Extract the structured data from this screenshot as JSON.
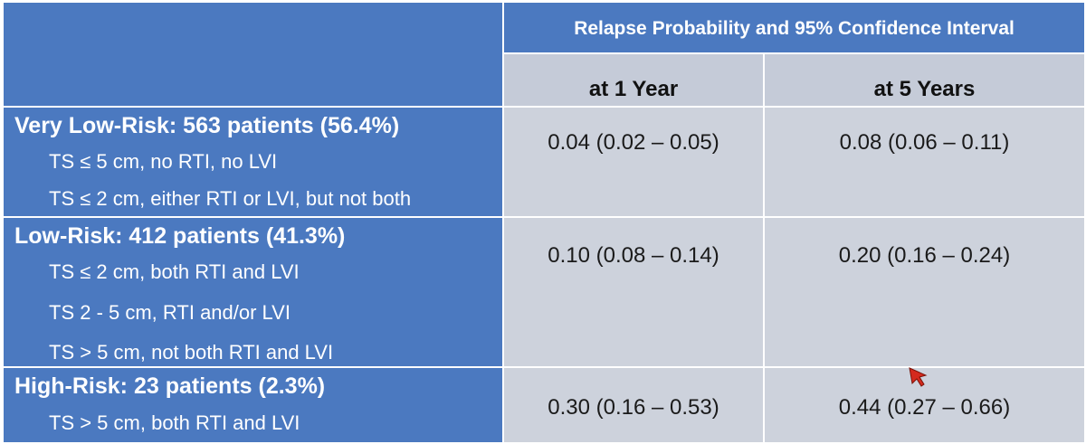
{
  "table": {
    "header_main": "Relapse Probability and 95% Confidence Interval",
    "header_sub": [
      "at 1 Year",
      "at 5 Years"
    ],
    "groups": [
      {
        "title": "Very Low-Risk: 563 patients (56.4%)",
        "criteria": [
          "TS ≤ 5 cm, no RTI, no LVI",
          "TS ≤ 2 cm, either RTI or LVI, but not both"
        ],
        "year1": "0.04 (0.02 – 0.05)",
        "year5": "0.08 (0.06 – 0.11)"
      },
      {
        "title": "Low-Risk: 412 patients (41.3%)",
        "criteria": [
          "TS ≤ 2 cm, both RTI and LVI",
          "TS 2 - 5 cm, RTI and/or LVI",
          "TS > 5 cm, not both RTI and LVI"
        ],
        "year1": "0.10 (0.08 – 0.14)",
        "year5": "0.20 (0.16 – 0.24)"
      },
      {
        "title": "High-Risk: 23 patients (2.3%)",
        "criteria": [
          "TS > 5 cm, both RTI and LVI"
        ],
        "year1": "0.30 (0.16 – 0.53)",
        "year5": "0.44 (0.27 – 0.66)"
      }
    ]
  },
  "colors": {
    "header_blue": "#4b79c0",
    "cell_gray": "#cdd2dc",
    "cursor_red": "#d42a1e"
  },
  "icons": {
    "cursor": "mouse-pointer-icon"
  }
}
